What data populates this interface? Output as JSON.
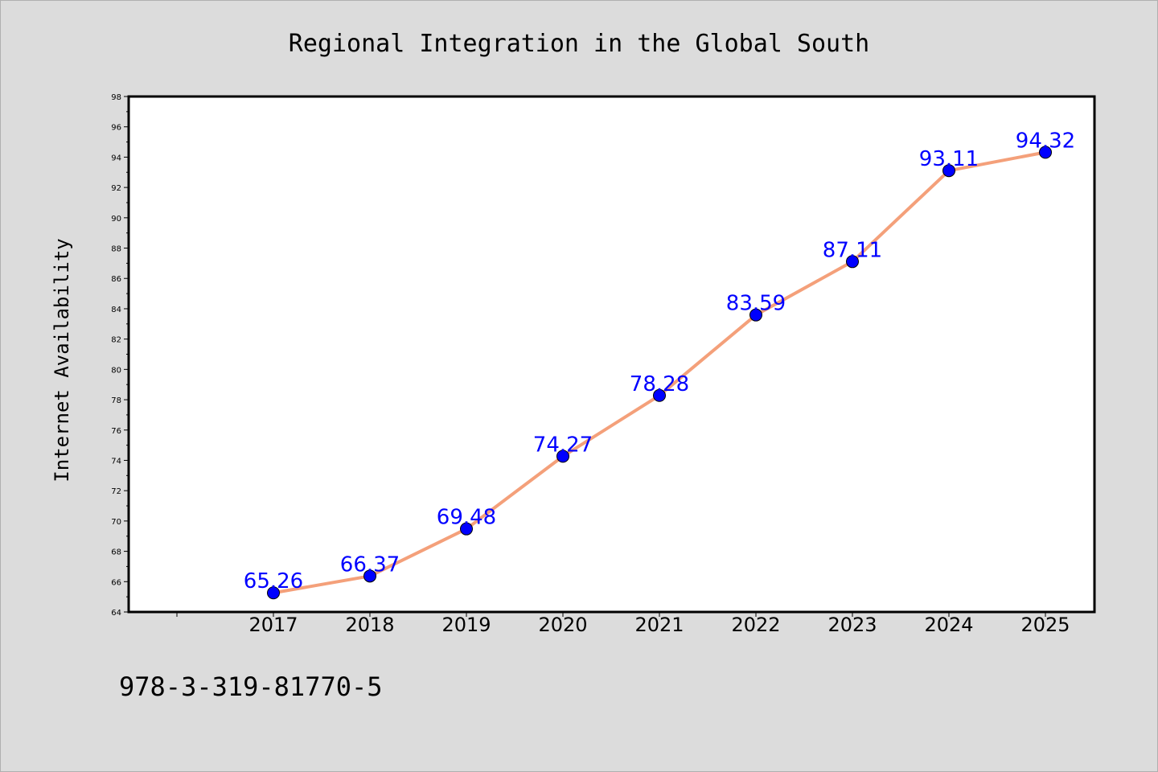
{
  "chart_data": {
    "type": "line",
    "title": "Regional Integration in the Global South",
    "xlabel": "",
    "ylabel": "Internet Availability",
    "categories": [
      "2017",
      "2018",
      "2019",
      "2020",
      "2021",
      "2022",
      "2023",
      "2024",
      "2025"
    ],
    "series": [
      {
        "values": [
          65.26,
          66.37,
          69.48,
          74.27,
          78.28,
          83.59,
          87.11,
          93.11,
          94.32
        ],
        "labels": [
          "65.26",
          "66.37",
          "69.48",
          "74.27",
          "78.28",
          "83.59",
          "87.11",
          "93.11",
          "94.32"
        ],
        "line_color": "#f4a07a",
        "marker_color": "#0000ff"
      }
    ],
    "ylim": [
      64,
      98
    ],
    "yticks": [
      "64",
      "66",
      "68",
      "70",
      "72",
      "74",
      "76",
      "78",
      "80",
      "82",
      "84",
      "86",
      "88",
      "90",
      "92",
      "94",
      "96",
      "98"
    ],
    "grid": false,
    "legend": "none"
  },
  "footer": {
    "isbn": "978-3-319-81770-5"
  }
}
